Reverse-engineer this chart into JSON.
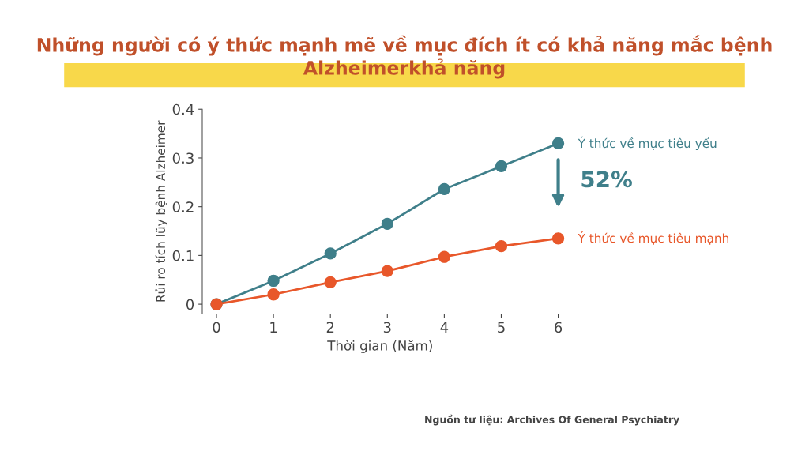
{
  "chart_data": {
    "type": "line",
    "title": "Những người có ý thức mạnh mẽ về mục đích ít có khả năng mắc bệnh Alzheimerkhả năng",
    "xlabel": "Thời gian (Năm)",
    "ylabel": "Rủi ro tích lũy bệnh Alzheimer",
    "x": [
      0,
      1,
      2,
      3,
      4,
      5,
      6
    ],
    "series": [
      {
        "name": "Ý thức về mục tiêu yếu",
        "color": "#3f7f8a",
        "values": [
          0,
          0.048,
          0.104,
          0.165,
          0.236,
          0.283,
          0.33
        ]
      },
      {
        "name": "Ý thức về mục tiêu mạnh",
        "color": "#e8572a",
        "values": [
          0,
          0.02,
          0.045,
          0.068,
          0.097,
          0.119,
          0.135
        ]
      }
    ],
    "xlim": [
      -0.25,
      6
    ],
    "xticks": [
      0,
      1,
      2,
      3,
      4,
      5,
      6
    ],
    "ylim": [
      -0.02,
      0.4
    ],
    "yticks": [
      0,
      0.1,
      0.2,
      0.3,
      0.4
    ],
    "marker": "circle",
    "grid": false,
    "legend": false,
    "annotations": [
      "52%",
      "Nguồn tư liệu: Archives Of General Psychiatry"
    ]
  }
}
